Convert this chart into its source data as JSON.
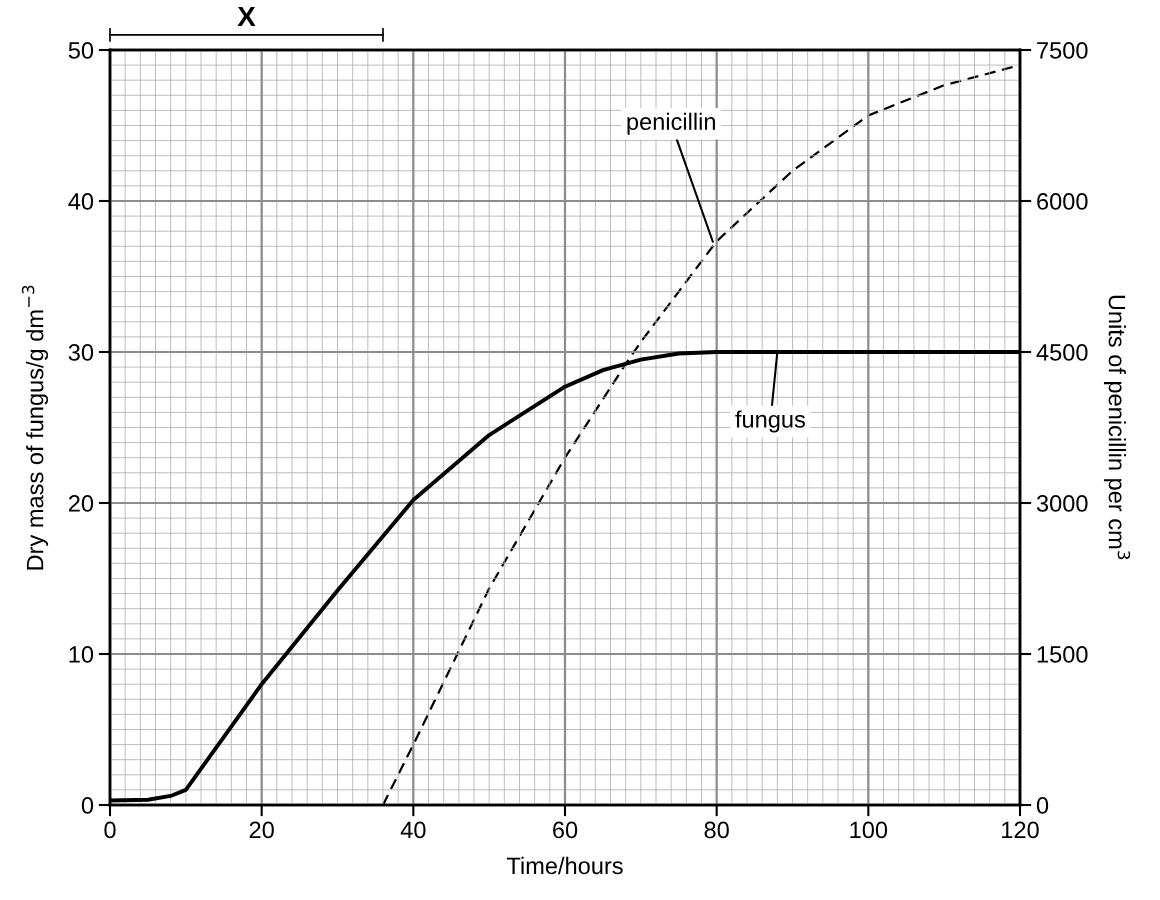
{
  "chart_data": {
    "type": "line",
    "xlabel": "Time/hours",
    "ylabel": "Dry mass of fungus/g dm$^{−3}$",
    "y2label": "Units of penicillin per cm$^{3}$",
    "series": [
      {
        "color": "#000000",
        "line_style": "solid",
        "x": [
          0,
          5,
          8,
          10,
          15,
          20,
          30,
          40,
          50,
          60,
          65,
          70,
          75,
          80,
          90,
          100,
          110,
          120
        ],
        "values": [
          0.3,
          0.35,
          0.6,
          1.0,
          4.5,
          8.0,
          14.2,
          20.2,
          24.5,
          27.7,
          28.8,
          29.5,
          29.9,
          30,
          30,
          30,
          30,
          30
        ]
      },
      {
        "color": "#000000",
        "line_style": "dashed",
        "axis": "y2",
        "x": [
          36,
          40,
          50,
          60,
          68,
          70,
          80,
          90,
          100,
          110,
          120
        ],
        "values": [
          0,
          600,
          2150,
          3450,
          4380,
          4600,
          5600,
          6300,
          6850,
          7150,
          7350
        ]
      }
    ],
    "xlim": [
      0,
      120
    ],
    "xticks": [
      0,
      20,
      40,
      60,
      80,
      100,
      120
    ],
    "ylim": [
      0,
      50
    ],
    "yticks": [
      0,
      10,
      20,
      30,
      40,
      50
    ],
    "y2lim": [
      0,
      7500
    ],
    "y2ticks": [
      0,
      1500,
      3000,
      4500,
      6000,
      7500
    ],
    "grid": true,
    "annotations": [
      "X",
      {
        "text": "penicillin",
        "x": 79.5,
        "y": 37.3
      },
      {
        "text": "fungus",
        "x": 88,
        "y": 30
      }
    ]
  }
}
